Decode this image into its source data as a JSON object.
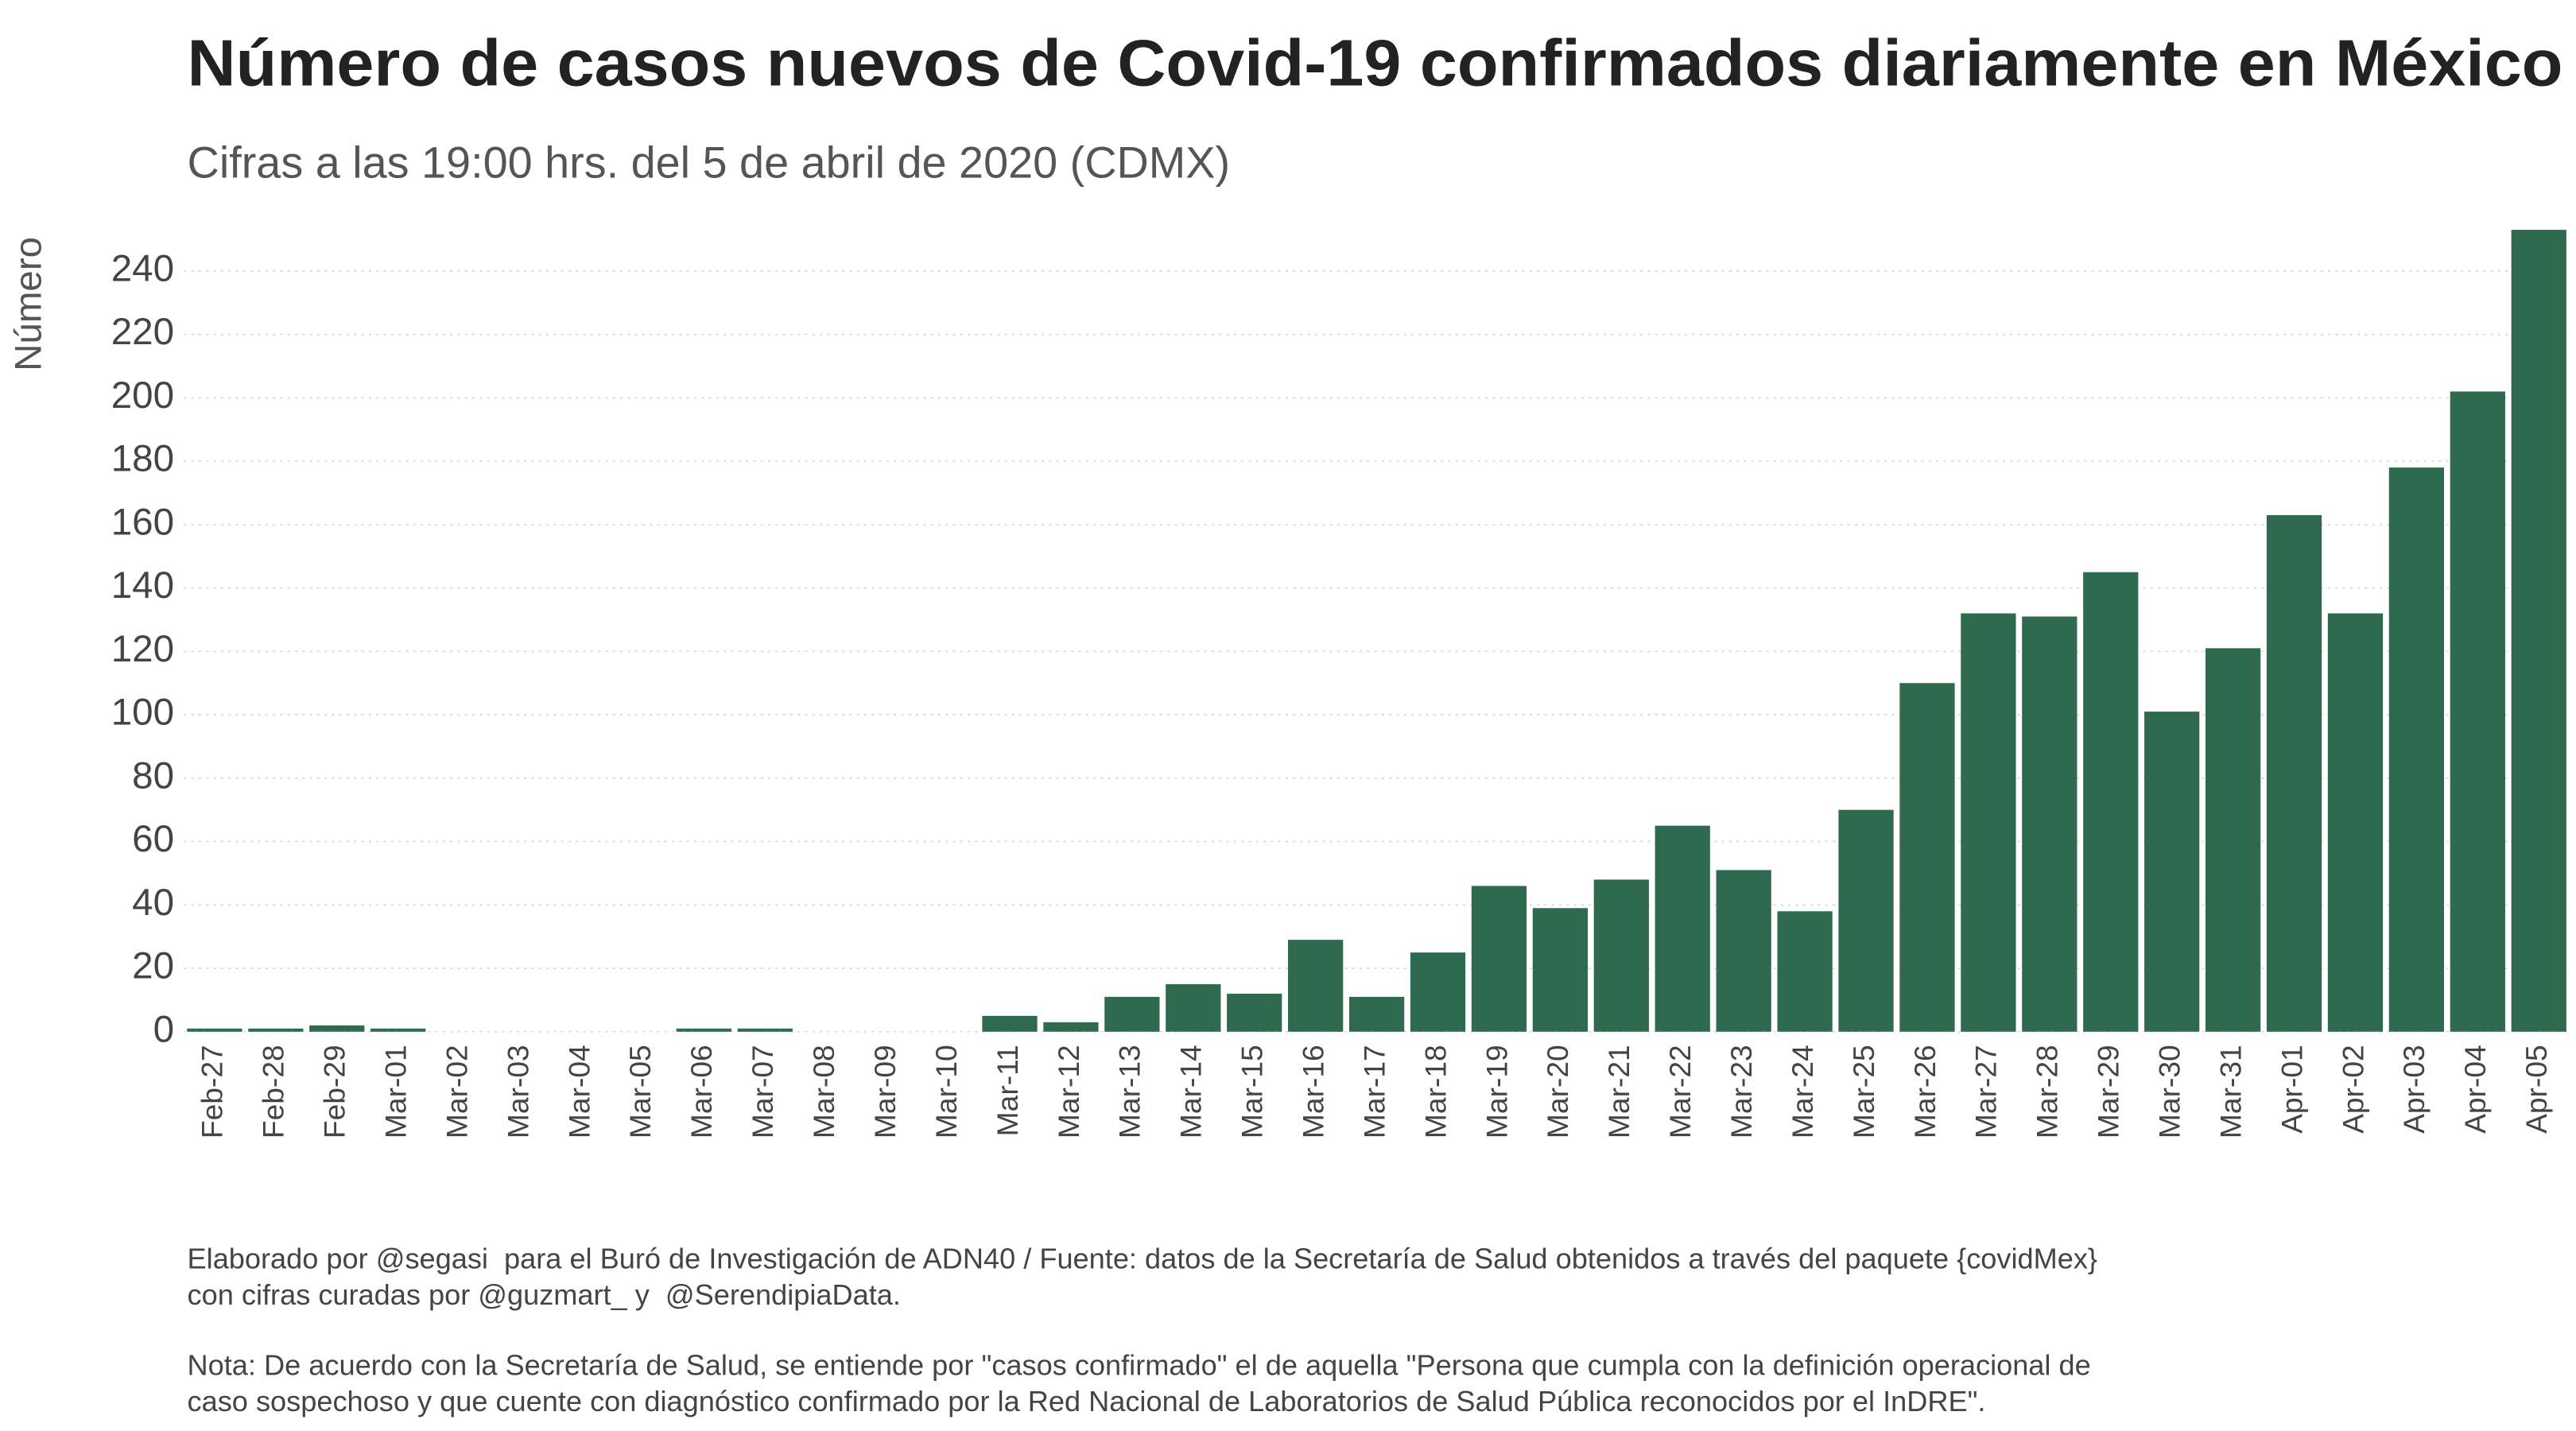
{
  "chart_data": {
    "type": "bar",
    "title": "Número de casos nuevos de Covid-19 confirmados diariamente en México",
    "subtitle": "Cifras a las 19:00 hrs. del 5 de abril de 2020 (CDMX)",
    "y_label": "Número",
    "categories": [
      "Feb-27",
      "Feb-28",
      "Feb-29",
      "Mar-01",
      "Mar-02",
      "Mar-03",
      "Mar-04",
      "Mar-05",
      "Mar-06",
      "Mar-07",
      "Mar-08",
      "Mar-09",
      "Mar-10",
      "Mar-11",
      "Mar-12",
      "Mar-13",
      "Mar-14",
      "Mar-15",
      "Mar-16",
      "Mar-17",
      "Mar-18",
      "Mar-19",
      "Mar-20",
      "Mar-21",
      "Mar-22",
      "Mar-23",
      "Mar-24",
      "Mar-25",
      "Mar-26",
      "Mar-27",
      "Mar-28",
      "Mar-29",
      "Mar-30",
      "Mar-31",
      "Apr-01",
      "Apr-02",
      "Apr-03",
      "Apr-04",
      "Apr-05"
    ],
    "values": [
      1,
      1,
      2,
      1,
      0,
      0,
      0,
      0,
      1,
      1,
      0,
      0,
      0,
      5,
      3,
      11,
      15,
      12,
      29,
      11,
      25,
      46,
      39,
      48,
      65,
      51,
      38,
      70,
      110,
      132,
      131,
      145,
      101,
      121,
      163,
      132,
      178,
      202,
      253
    ],
    "color": "#2f6a4e",
    "ylim": [
      0,
      255
    ],
    "yticks": [
      0,
      20,
      40,
      60,
      80,
      100,
      120,
      140,
      160,
      180,
      200,
      220,
      240
    ],
    "grid": true,
    "notes": [
      "Elaborado por @segasi  para el Buró de Investigación de ADN40 / Fuente: datos de la Secretaría de Salud obtenidos a través del paquete {covidMex}",
      "con cifras curadas por @guzmart_ y  @SerendipiaData.",
      "Nota: De acuerdo con la Secretaría de Salud, se entiende por \"casos confirmado\" el de aquella \"Persona que cumpla con la definición operacional de",
      "caso sospechoso y que cuente con diagnóstico confirmado por la Red Nacional de Laboratorios de Salud Pública reconocidos por el InDRE\"."
    ]
  }
}
